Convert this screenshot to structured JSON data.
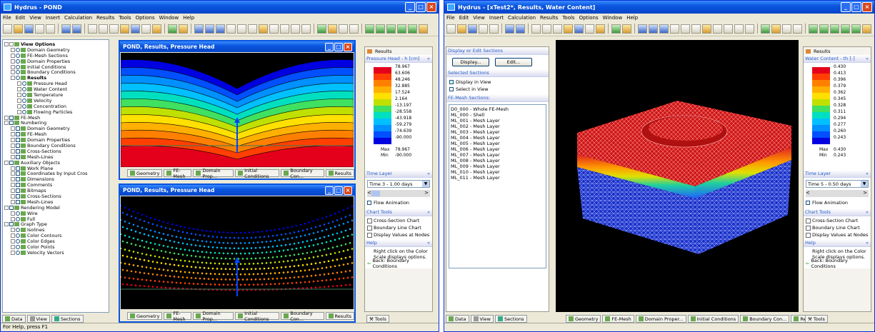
{
  "left_window": {
    "title": "Hydrus - POND",
    "menu": [
      "File",
      "Edit",
      "View",
      "Insert",
      "Calculation",
      "Results",
      "Tools",
      "Options",
      "Window",
      "Help"
    ],
    "tree": [
      {
        "label": "View Options",
        "level": 0,
        "bold": true,
        "ctrl": "pm"
      },
      {
        "label": "Domain Geometry",
        "level": 1,
        "ctrl": "rd"
      },
      {
        "label": "FE-Mesh Sections",
        "level": 1,
        "ctrl": "rd"
      },
      {
        "label": "Domain Properties",
        "level": 1,
        "ctrl": "rd"
      },
      {
        "label": "Initial Conditions",
        "level": 1,
        "ctrl": "rd"
      },
      {
        "label": "Boundary Conditions",
        "level": 1,
        "ctrl": "rd"
      },
      {
        "label": "Results",
        "level": 1,
        "bold": true,
        "ctrl": "rd"
      },
      {
        "label": "Pressure Head",
        "level": 2,
        "ctrl": "rd"
      },
      {
        "label": "Water Content",
        "level": 2,
        "ctrl": "rd"
      },
      {
        "label": "Temperature",
        "level": 2,
        "ctrl": "rd"
      },
      {
        "label": "Velocity",
        "level": 2,
        "ctrl": "rd"
      },
      {
        "label": "Concentration",
        "level": 2,
        "ctrl": "rd"
      },
      {
        "label": "Flowing Particles",
        "level": 2,
        "ctrl": "rd"
      },
      {
        "label": "FE-Mesh",
        "level": 0,
        "ctrl": "cb"
      },
      {
        "label": "Numbering",
        "level": 0,
        "ctrl": "cb"
      },
      {
        "label": "Domain Geometry",
        "level": 1,
        "ctrl": "cb"
      },
      {
        "label": "FE-Mesh",
        "level": 1,
        "ctrl": "cb"
      },
      {
        "label": "Domain Properties",
        "level": 1,
        "ctrl": "cb"
      },
      {
        "label": "Boundary Conditions",
        "level": 1,
        "ctrl": "cb"
      },
      {
        "label": "Cross-Sections",
        "level": 1,
        "ctrl": "cb"
      },
      {
        "label": "Mesh-Lines",
        "level": 1,
        "ctrl": "cb"
      },
      {
        "label": "Auxiliary Objects",
        "level": 0,
        "ctrl": "cb"
      },
      {
        "label": "Work Plane",
        "level": 1,
        "ctrl": "cb"
      },
      {
        "label": "Coordinates by Input Cros",
        "level": 1,
        "ctrl": "cb"
      },
      {
        "label": "Dimensions",
        "level": 1,
        "ctrl": "cb"
      },
      {
        "label": "Comments",
        "level": 1,
        "ctrl": "cb"
      },
      {
        "label": "Bitmaps",
        "level": 1,
        "ctrl": "cb"
      },
      {
        "label": "Cross-Sections",
        "level": 1,
        "ctrl": "cb"
      },
      {
        "label": "Mesh-Lines",
        "level": 1,
        "ctrl": "cb"
      },
      {
        "label": "Rendering Model",
        "level": 0,
        "ctrl": "cb"
      },
      {
        "label": "Wire",
        "level": 1,
        "ctrl": "rd"
      },
      {
        "label": "Full",
        "level": 1,
        "ctrl": "rd"
      },
      {
        "label": "Graph Type",
        "level": 0,
        "ctrl": "cb"
      },
      {
        "label": "Isolines",
        "level": 1,
        "ctrl": "rd"
      },
      {
        "label": "Color Contours",
        "level": 1,
        "ctrl": "rd"
      },
      {
        "label": "Color Edges",
        "level": 1,
        "ctrl": "rd"
      },
      {
        "label": "Color Points",
        "level": 1,
        "ctrl": "rd"
      },
      {
        "label": "Velocity Vectors",
        "level": 1,
        "ctrl": "rd"
      }
    ],
    "bottom_tabs": [
      "Data",
      "View",
      "Sections"
    ],
    "status": "For Help, press F1",
    "child_top_title": "POND, Results, Pressure Head",
    "child_bottom_title": "POND, Results, Pressure Head",
    "child_tabs": [
      "Geometry",
      "FE-Mesh",
      "Domain Prop...",
      "Initial Conditions",
      "Boundary Con...",
      "Results"
    ],
    "results_title": "Results",
    "legend_title": "Pressure Head - h [cm]",
    "legend_values": [
      "78.967",
      "63.606",
      "48.246",
      "32.885",
      "17.524",
      "2.164",
      "-13.197",
      "-28.558",
      "-43.918",
      "-59.279",
      "-74.639",
      "-90.000"
    ],
    "legend_max_label": "Max",
    "legend_min_label": "Min",
    "legend_max": "78.967",
    "legend_min": "-90.000",
    "time_layer_title": "Time Layer",
    "time_layer_value": "Time 3 - 1.00 days",
    "flow_animation": "Flow Animation",
    "chart_tools_title": "Chart Tools",
    "chart_tools": [
      "Cross-Section Chart",
      "Boundary Line Chart",
      "Display Values at Nodes"
    ],
    "help_title": "Help",
    "help_text": "Right click on the Color Scale displays options.",
    "help_back": "Back: Boundary Conditions",
    "tools_tab": "Tools"
  },
  "right_window": {
    "title": "Hydrus - [xTest2*, Results, Water Content]",
    "menu": [
      "File",
      "Edit",
      "View",
      "Insert",
      "Calculation",
      "Results",
      "Tools",
      "Options",
      "Window",
      "Help"
    ],
    "display_edit_title": "Display or Edit Sections",
    "display_button": "Display...",
    "edit_button": "Edit...",
    "selected_sections_title": "Selected Sections",
    "display_in_view": "Display in View",
    "select_in_view": "Select in View",
    "fe_mesh_sections_title": "FE-Mesh Sections:",
    "sections": [
      "D0_000 - Whole FE-Mesh",
      "ML_000 - Shell",
      "ML_001 - Mesh Layer",
      "ML_002 - Mesh Layer",
      "ML_003 - Mesh Layer",
      "ML_004 - Mesh Layer",
      "ML_005 - Mesh Layer",
      "ML_006 - Mesh Layer",
      "ML_007 - Mesh Layer",
      "ML_008 - Mesh Layer",
      "ML_009 - Mesh Layer",
      "ML_010 - Mesh Layer",
      "ML_011 - Mesh Layer"
    ],
    "bottom_tabs": [
      "Data",
      "View",
      "Sections"
    ],
    "view_tabs": [
      "Geometry",
      "FE-Mesh",
      "Domain Proper...",
      "Initial Conditions",
      "Boundary Con...",
      "Results"
    ],
    "results_title": "Results",
    "legend_title": "Water Content - th [-]",
    "legend_values": [
      "0.430",
      "0.413",
      "0.396",
      "0.379",
      "0.362",
      "0.345",
      "0.328",
      "0.311",
      "0.294",
      "0.277",
      "0.260",
      "0.243"
    ],
    "legend_max_label": "Max",
    "legend_min_label": "Min",
    "legend_max": "0.430",
    "legend_min": "0.243",
    "time_layer_title": "Time Layer",
    "time_layer_value": "Time 5 - 0.50 days",
    "flow_animation": "Flow Animation",
    "chart_tools_title": "Chart Tools",
    "chart_tools": [
      "Cross-Section Chart",
      "Boundary Line Chart",
      "Display Values at Nodes"
    ],
    "help_title": "Help",
    "help_text": "Right click on the Color Scale displays options.",
    "help_back": "Back: Boundary Conditions",
    "tools_tab": "Tools"
  },
  "colors": {
    "scale": [
      "#e4001b",
      "#ff4000",
      "#ff8000",
      "#ffb000",
      "#ffe000",
      "#c0e000",
      "#40e060",
      "#00e0c0",
      "#00c0ff",
      "#0090ff",
      "#0050ff",
      "#0000e0"
    ]
  }
}
